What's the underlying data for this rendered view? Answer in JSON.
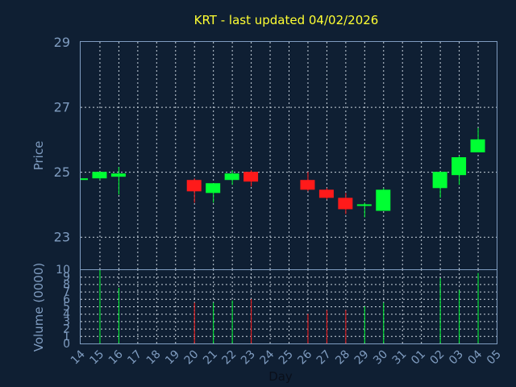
{
  "chart_data": {
    "type": "candlestick",
    "title": "KRT - last updated 04/02/2026",
    "ylabel": "Price",
    "xlabel": "Day",
    "volume_label": "Volume (0000)",
    "ylim": [
      22,
      29
    ],
    "yticks": [
      23,
      25,
      27,
      29
    ],
    "volume_ylim": [
      0,
      10
    ],
    "volume_yticks": [
      0,
      1,
      2,
      3,
      4,
      5,
      6,
      7,
      8,
      9,
      10
    ],
    "x_tick_labels": [
      "14",
      "15",
      "16",
      "17",
      "18",
      "19",
      "20",
      "21",
      "22",
      "23",
      "24",
      "25",
      "26",
      "27",
      "28",
      "29",
      "30",
      "31",
      "01",
      "02",
      "03",
      "04",
      "05"
    ],
    "grid": true,
    "up_color": "#00ff33",
    "down_color": "#ff1a1a",
    "candles": [
      {
        "day": "14",
        "open": 24.78,
        "high": 24.8,
        "low": 24.76,
        "close": 24.8,
        "volume": 0
      },
      {
        "day": "15",
        "open": 24.8,
        "high": 25.0,
        "low": 24.75,
        "close": 25.0,
        "volume": 10
      },
      {
        "day": "16",
        "open": 24.85,
        "high": 25.15,
        "low": 24.3,
        "close": 24.95,
        "volume": 7.5
      },
      {
        "day": "20",
        "open": 24.75,
        "high": 24.8,
        "low": 24.05,
        "close": 24.4,
        "volume": 5.5
      },
      {
        "day": "21",
        "open": 24.35,
        "high": 24.65,
        "low": 24.05,
        "close": 24.65,
        "volume": 5.5
      },
      {
        "day": "22",
        "open": 24.75,
        "high": 25.05,
        "low": 24.6,
        "close": 24.95,
        "volume": 5.8
      },
      {
        "day": "23",
        "open": 25.0,
        "high": 25.05,
        "low": 24.55,
        "close": 24.7,
        "volume": 6.0
      },
      {
        "day": "26",
        "open": 24.75,
        "high": 25.0,
        "low": 24.4,
        "close": 24.45,
        "volume": 4.0
      },
      {
        "day": "27",
        "open": 24.45,
        "high": 24.5,
        "low": 24.15,
        "close": 24.2,
        "volume": 4.5
      },
      {
        "day": "28",
        "open": 24.2,
        "high": 24.35,
        "low": 23.7,
        "close": 23.85,
        "volume": 4.5
      },
      {
        "day": "29",
        "open": 23.98,
        "high": 24.05,
        "low": 23.6,
        "close": 24.0,
        "volume": 5.0
      },
      {
        "day": "30",
        "open": 23.8,
        "high": 24.5,
        "low": 23.8,
        "close": 24.45,
        "volume": 5.5
      },
      {
        "day": "02",
        "open": 24.5,
        "high": 25.0,
        "low": 24.2,
        "close": 25.0,
        "volume": 8.8
      },
      {
        "day": "03",
        "open": 24.9,
        "high": 25.5,
        "low": 24.6,
        "close": 25.45,
        "volume": 7.2
      },
      {
        "day": "04",
        "open": 25.6,
        "high": 26.35,
        "low": 25.6,
        "close": 26.0,
        "volume": 9.5
      }
    ]
  }
}
